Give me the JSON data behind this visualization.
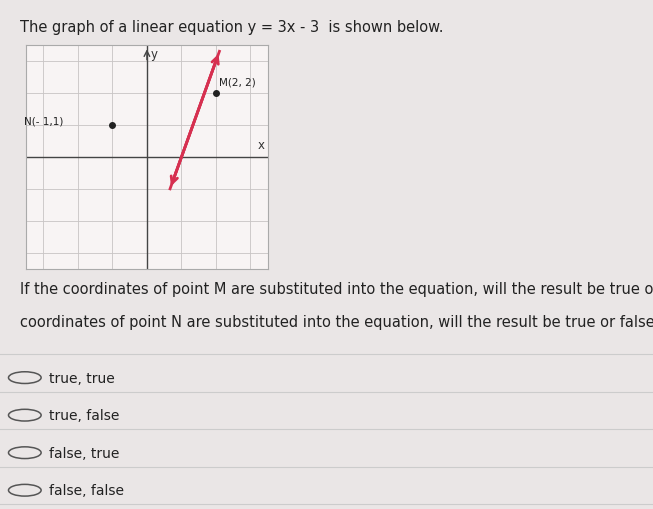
{
  "title": "The graph of a linear equation y = 3x - 3  is shown below.",
  "title_fontsize": 10.5,
  "page_bg": "#eae6e6",
  "content_bg": "#f5f2f2",
  "graph_bg": "#e8e4e4",
  "graph_inner_bg": "#f8f4f4",
  "line_color": "#d63050",
  "point_color": "#222222",
  "point_M": [
    2,
    2
  ],
  "point_N": [
    -1,
    1
  ],
  "point_M_label": "M(2, 2)",
  "point_N_label": "N(- 1,1)",
  "axis_label_x": "x",
  "axis_label_y": "y",
  "xlim": [
    -3.5,
    3.5
  ],
  "ylim": [
    -3.5,
    3.5
  ],
  "line_x_start": 0.67,
  "line_x_end": 2.1,
  "question_text1": "If the coordinates of point M are substituted into the equation, will the result be true or false? If the",
  "question_text2": "coordinates of point N are substituted into the equation, will the result be true or false?",
  "options": [
    "true, true",
    "true, false",
    "false, true",
    "false, false"
  ],
  "option_fontsize": 10,
  "question_fontsize": 10.5,
  "separator_color": "#cccccc",
  "text_color": "#222222",
  "radio_color": "#555555"
}
